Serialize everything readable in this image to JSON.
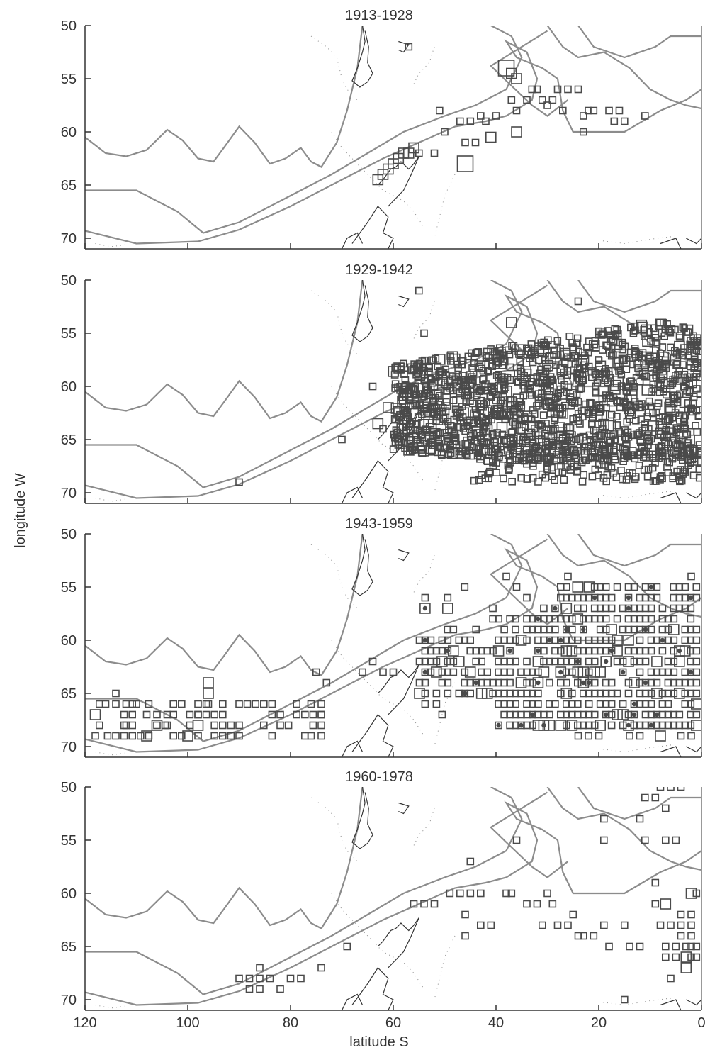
{
  "figure": {
    "ylabel": "longitude W",
    "xlabel": "latitude S"
  },
  "colors": {
    "contour": "#8c8c8c",
    "coast": "#333333",
    "marker": "#4a4a4a",
    "axis": "#333333"
  },
  "chart_data": [
    {
      "type": "scatter",
      "title": "1913-1928",
      "xlim": [
        120,
        0
      ],
      "ylim": [
        50,
        71
      ],
      "xticks": [
        120,
        100,
        80,
        60,
        40,
        20,
        0
      ],
      "yticks": [
        50,
        55,
        60,
        65,
        70
      ],
      "xtick_labels_shown": false,
      "points": [
        [
          57,
          52,
          1
        ],
        [
          63,
          64.5,
          2
        ],
        [
          62,
          64,
          2
        ],
        [
          61,
          63.5,
          2
        ],
        [
          60,
          63,
          2
        ],
        [
          59,
          62.5,
          2
        ],
        [
          58,
          62,
          2
        ],
        [
          57,
          62,
          2
        ],
        [
          56,
          61.5,
          2
        ],
        [
          55,
          62,
          1
        ],
        [
          52,
          62,
          1
        ],
        [
          51,
          58,
          1
        ],
        [
          50,
          60,
          1
        ],
        [
          47,
          59,
          1
        ],
        [
          45,
          59,
          1
        ],
        [
          46,
          61,
          1
        ],
        [
          44,
          61,
          1
        ],
        [
          43,
          58.5,
          1
        ],
        [
          42,
          59,
          1
        ],
        [
          41,
          60.5,
          2
        ],
        [
          40,
          58.5,
          1
        ],
        [
          38,
          54,
          3
        ],
        [
          37,
          54.5,
          2
        ],
        [
          36,
          55,
          2
        ],
        [
          37,
          57,
          1
        ],
        [
          36,
          58,
          1
        ],
        [
          36,
          60,
          2
        ],
        [
          34,
          57,
          1
        ],
        [
          33,
          56,
          1
        ],
        [
          32,
          56,
          1
        ],
        [
          31,
          57,
          1
        ],
        [
          30,
          57.5,
          1
        ],
        [
          29,
          57,
          1
        ],
        [
          28,
          56,
          1
        ],
        [
          27,
          58,
          1
        ],
        [
          26,
          56,
          1
        ],
        [
          24,
          56,
          1
        ],
        [
          23,
          58.5,
          1
        ],
        [
          22,
          58,
          1
        ],
        [
          23,
          60,
          1
        ],
        [
          21,
          58,
          1
        ],
        [
          18,
          58,
          1
        ],
        [
          17,
          59,
          1
        ],
        [
          16,
          58,
          1
        ],
        [
          15,
          59,
          1
        ],
        [
          11,
          58.5,
          1
        ],
        [
          46,
          63,
          3
        ]
      ]
    },
    {
      "type": "scatter",
      "title": "1929-1942",
      "xlim": [
        120,
        0
      ],
      "ylim": [
        50,
        71
      ],
      "xticks": [
        120,
        100,
        80,
        60,
        40,
        20,
        0
      ],
      "yticks": [
        50,
        55,
        60,
        65,
        70
      ],
      "xtick_labels_shown": false,
      "points": [
        [
          55,
          51,
          1
        ],
        [
          54,
          55,
          1
        ],
        [
          64,
          60,
          1
        ],
        [
          70,
          65,
          1
        ],
        [
          90,
          69,
          1
        ],
        [
          37,
          54,
          2
        ],
        [
          24,
          52,
          1
        ],
        [
          61,
          62,
          2
        ],
        [
          63,
          63.5,
          2
        ],
        [
          62,
          64,
          1
        ]
      ],
      "dense_region": {
        "lat_range": [
          0,
          60
        ],
        "lon_range": [
          54,
          67
        ]
      },
      "outer_band": {
        "lat_range": [
          0,
          45
        ],
        "lon_range": [
          66,
          69
        ]
      }
    },
    {
      "type": "scatter",
      "title": "1943-1959",
      "xlim": [
        120,
        0
      ],
      "ylim": [
        50,
        71
      ],
      "xticks": [
        120,
        100,
        80,
        60,
        40,
        20,
        0
      ],
      "yticks": [
        50,
        55,
        60,
        65,
        70
      ],
      "xtick_labels_shown": false,
      "points": [
        [
          75,
          63,
          1
        ],
        [
          73,
          64,
          1
        ],
        [
          64,
          62,
          1
        ],
        [
          66,
          63,
          1
        ],
        [
          62,
          63,
          1
        ],
        [
          60,
          63,
          1
        ],
        [
          96,
          64,
          2
        ],
        [
          96,
          65,
          2
        ],
        [
          96,
          66,
          1
        ],
        [
          98,
          67,
          1
        ],
        [
          98,
          68,
          2
        ],
        [
          104,
          67,
          1
        ],
        [
          106,
          68,
          2
        ],
        [
          104,
          68,
          1
        ],
        [
          108,
          67,
          1
        ],
        [
          110,
          66,
          1
        ],
        [
          112,
          66,
          1
        ],
        [
          114,
          65,
          1
        ],
        [
          116,
          66,
          1
        ],
        [
          118,
          67,
          2
        ],
        [
          118,
          69,
          1
        ],
        [
          112,
          68,
          1
        ],
        [
          100,
          69,
          2
        ],
        [
          108,
          69,
          2
        ],
        [
          76,
          66,
          1
        ],
        [
          74,
          67,
          1
        ],
        [
          76,
          69,
          1
        ],
        [
          36,
          55,
          1
        ],
        [
          38,
          54,
          1
        ],
        [
          34,
          56,
          1
        ],
        [
          26,
          54,
          1
        ],
        [
          2,
          54,
          1
        ],
        [
          24,
          69,
          1
        ],
        [
          22,
          69,
          1
        ],
        [
          20,
          69,
          1
        ],
        [
          14,
          69,
          1
        ],
        [
          12,
          69,
          1
        ],
        [
          8,
          69,
          2
        ],
        [
          4,
          69,
          1
        ],
        [
          2,
          69,
          1
        ]
      ],
      "grid_region": {
        "lat_range": [
          0,
          56
        ],
        "lon_range": [
          55,
          68
        ]
      },
      "left_band": {
        "lat_range": [
          74,
          118
        ],
        "lon_range": [
          66,
          69
        ]
      }
    },
    {
      "type": "scatter",
      "title": "1960-1978",
      "xlim": [
        120,
        0
      ],
      "ylim": [
        50,
        71
      ],
      "xticks": [
        120,
        100,
        80,
        60,
        40,
        20,
        0
      ],
      "yticks": [
        50,
        55,
        60,
        65,
        70
      ],
      "xtick_labels_shown": true,
      "points": [
        [
          86,
          67,
          1
        ],
        [
          88,
          68,
          1
        ],
        [
          86,
          68,
          1
        ],
        [
          84,
          68,
          1
        ],
        [
          90,
          68,
          1
        ],
        [
          82,
          69,
          1
        ],
        [
          86,
          69,
          1
        ],
        [
          88,
          69,
          1
        ],
        [
          80,
          68,
          1
        ],
        [
          78,
          68,
          1
        ],
        [
          74,
          67,
          1
        ],
        [
          69,
          65,
          1
        ],
        [
          56,
          61,
          1
        ],
        [
          54,
          61,
          1
        ],
        [
          52,
          61,
          1
        ],
        [
          49,
          60,
          1
        ],
        [
          47,
          60,
          1
        ],
        [
          45,
          60,
          1
        ],
        [
          43,
          60,
          1
        ],
        [
          46,
          62,
          1
        ],
        [
          43,
          63,
          1
        ],
        [
          41,
          63,
          1
        ],
        [
          46,
          64,
          1
        ],
        [
          45,
          57,
          1
        ],
        [
          38,
          60,
          1
        ],
        [
          37,
          60,
          1
        ],
        [
          36,
          55,
          1
        ],
        [
          34,
          61,
          1
        ],
        [
          30,
          60,
          1
        ],
        [
          29,
          61,
          1
        ],
        [
          28,
          63,
          1
        ],
        [
          26,
          63,
          1
        ],
        [
          24,
          64,
          1
        ],
        [
          23,
          64,
          1
        ],
        [
          21,
          64,
          1
        ],
        [
          19,
          63,
          1
        ],
        [
          18,
          65,
          1
        ],
        [
          15,
          63,
          1
        ],
        [
          14,
          65,
          1
        ],
        [
          12,
          65,
          1
        ],
        [
          11,
          51,
          1
        ],
        [
          9,
          51,
          1
        ],
        [
          6,
          50,
          1
        ],
        [
          4,
          50,
          1
        ],
        [
          8,
          50,
          1
        ],
        [
          7,
          52,
          1
        ],
        [
          12,
          53,
          1
        ],
        [
          11,
          55,
          1
        ],
        [
          7,
          55,
          1
        ],
        [
          5,
          55,
          1
        ],
        [
          19,
          53,
          1
        ],
        [
          19,
          55,
          1
        ],
        [
          9,
          59,
          1
        ],
        [
          9,
          61,
          1
        ],
        [
          7,
          61,
          2
        ],
        [
          2,
          60,
          2
        ],
        [
          4,
          62,
          1
        ],
        [
          2,
          62,
          1
        ],
        [
          1,
          60,
          1
        ],
        [
          8,
          63,
          1
        ],
        [
          6,
          63,
          1
        ],
        [
          4,
          63,
          1
        ],
        [
          2,
          63,
          1
        ],
        [
          4,
          64,
          1
        ],
        [
          2,
          64,
          1
        ],
        [
          1,
          65,
          1
        ],
        [
          7,
          65,
          1
        ],
        [
          5,
          65,
          1
        ],
        [
          3,
          65,
          1
        ],
        [
          2,
          65,
          1
        ],
        [
          7,
          66,
          1
        ],
        [
          5,
          66,
          1
        ],
        [
          3,
          66,
          2
        ],
        [
          2,
          66,
          1
        ],
        [
          1,
          66,
          1
        ],
        [
          6,
          68,
          1
        ],
        [
          3,
          67,
          2
        ],
        [
          15,
          70,
          1
        ],
        [
          25,
          62,
          1
        ],
        [
          32,
          61,
          1
        ],
        [
          31,
          63,
          1
        ]
      ]
    }
  ]
}
